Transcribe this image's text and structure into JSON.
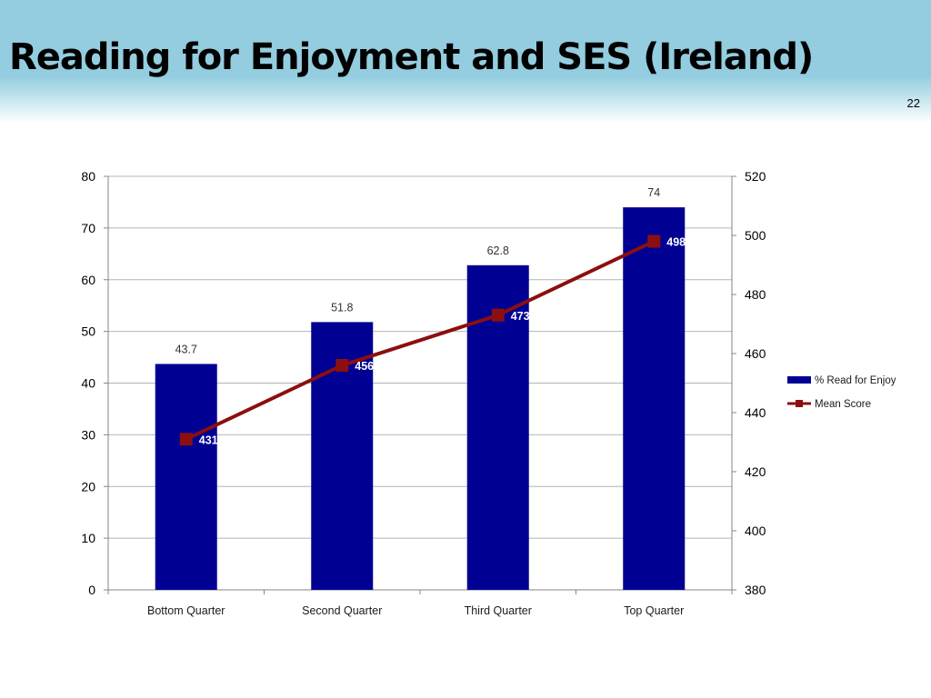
{
  "slide": {
    "title": "Reading for Enjoyment and SES (Ireland)",
    "number": "22"
  },
  "colors": {
    "header_band": "#93cddf",
    "bar": "#000093",
    "line": "#8b0f0f",
    "grid": "#b4b4b4",
    "data_label_on_bar": "#ffffff"
  },
  "chart_data": {
    "type": "bar",
    "categories": [
      "Bottom Quarter",
      "Second Quarter",
      "Third Quarter",
      "Top Quarter"
    ],
    "series": [
      {
        "name": "% Read for Enjoy",
        "type": "bar",
        "axis": "left",
        "values": [
          43.7,
          51.8,
          62.8,
          74
        ],
        "labels": [
          "43.7",
          "51.8",
          "62.8",
          "74"
        ]
      },
      {
        "name": "Mean Score",
        "type": "line",
        "axis": "right",
        "values": [
          431,
          456,
          473,
          498
        ],
        "labels": [
          "431",
          "456",
          "473",
          "498"
        ]
      }
    ],
    "y_left": {
      "min": 0,
      "max": 80,
      "ticks": [
        0,
        10,
        20,
        30,
        40,
        50,
        60,
        70,
        80
      ]
    },
    "y_right": {
      "min": 380,
      "max": 520,
      "ticks": [
        380,
        400,
        420,
        440,
        460,
        480,
        500,
        520
      ]
    },
    "grid": true,
    "legend": {
      "position": "right"
    }
  }
}
